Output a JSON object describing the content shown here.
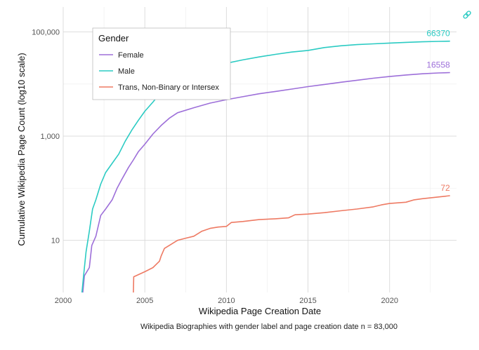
{
  "chart_data": {
    "type": "line",
    "title": "",
    "xlabel": "Wikipedia Page Creation Date",
    "ylabel": "Cumulative Wikipedia Page Count (log10 scale)",
    "caption": "Wikipedia Biographies with gender label and page creation date n = 83,000",
    "x_ticks": [
      "2000",
      "2005",
      "2010",
      "2015",
      "2020"
    ],
    "y_ticks": [
      "10",
      "1,000",
      "100,000"
    ],
    "y_scale": "log10",
    "xlim": [
      2000,
      2024.1
    ],
    "ylim": [
      1,
      300000
    ],
    "grid": true,
    "legend": {
      "title": "Gender",
      "position": "top-left"
    },
    "series": [
      {
        "name": "Female",
        "color": "#9d6fd9",
        "end_label": "16558",
        "points": [
          [
            2001.2,
            1
          ],
          [
            2001.3,
            2.1
          ],
          [
            2001.6,
            3
          ],
          [
            2001.75,
            8
          ],
          [
            2002.0,
            12
          ],
          [
            2002.3,
            30
          ],
          [
            2002.6,
            40
          ],
          [
            2003.0,
            60
          ],
          [
            2003.3,
            100
          ],
          [
            2003.6,
            150
          ],
          [
            2004.0,
            250
          ],
          [
            2004.3,
            350
          ],
          [
            2004.6,
            500
          ],
          [
            2005.0,
            700
          ],
          [
            2005.5,
            1100
          ],
          [
            2006.0,
            1600
          ],
          [
            2006.5,
            2200
          ],
          [
            2007.0,
            2800
          ],
          [
            2008.0,
            3500
          ],
          [
            2009.0,
            4300
          ],
          [
            2010.0,
            5000
          ],
          [
            2011.0,
            5700
          ],
          [
            2012.0,
            6500
          ],
          [
            2013.0,
            7200
          ],
          [
            2014.0,
            8000
          ],
          [
            2015.0,
            8900
          ],
          [
            2016.0,
            9800
          ],
          [
            2017.0,
            10800
          ],
          [
            2018.0,
            11800
          ],
          [
            2019.0,
            12900
          ],
          [
            2020.0,
            13900
          ],
          [
            2021.0,
            14900
          ],
          [
            2022.0,
            15700
          ],
          [
            2023.0,
            16300
          ],
          [
            2023.7,
            16558
          ]
        ]
      },
      {
        "name": "Male",
        "color": "#2bcbc3",
        "end_label": "66370",
        "points": [
          [
            2001.15,
            1
          ],
          [
            2001.25,
            2.1
          ],
          [
            2001.4,
            6
          ],
          [
            2001.6,
            15
          ],
          [
            2001.8,
            40
          ],
          [
            2002.0,
            60
          ],
          [
            2002.3,
            120
          ],
          [
            2002.6,
            200
          ],
          [
            2003.0,
            300
          ],
          [
            2003.4,
            450
          ],
          [
            2003.8,
            800
          ],
          [
            2004.2,
            1300
          ],
          [
            2004.6,
            2000
          ],
          [
            2005.0,
            3000
          ],
          [
            2005.5,
            4500
          ],
          [
            2006.0,
            7000
          ],
          [
            2006.5,
            10000
          ],
          [
            2007.0,
            13000
          ],
          [
            2008.0,
            18000
          ],
          [
            2009.0,
            22000
          ],
          [
            2010.0,
            25000
          ],
          [
            2011.0,
            29000
          ],
          [
            2012.0,
            33000
          ],
          [
            2013.0,
            37000
          ],
          [
            2014.0,
            41000
          ],
          [
            2015.0,
            44000
          ],
          [
            2016.0,
            50000
          ],
          [
            2017.0,
            54000
          ],
          [
            2018.0,
            57000
          ],
          [
            2019.0,
            59000
          ],
          [
            2020.0,
            61000
          ],
          [
            2021.0,
            63000
          ],
          [
            2022.0,
            64500
          ],
          [
            2023.0,
            65800
          ],
          [
            2023.7,
            66370
          ]
        ]
      },
      {
        "name": "Trans, Non-Binary or Intersex",
        "color": "#ee7a63",
        "end_label": "72",
        "points": [
          [
            2004.3,
            1
          ],
          [
            2004.32,
            2
          ],
          [
            2005.0,
            2.5
          ],
          [
            2005.5,
            3
          ],
          [
            2005.9,
            4
          ],
          [
            2006.0,
            5
          ],
          [
            2006.2,
            7
          ],
          [
            2006.5,
            8
          ],
          [
            2007.0,
            10
          ],
          [
            2007.5,
            11
          ],
          [
            2008.0,
            12
          ],
          [
            2008.5,
            15
          ],
          [
            2009.0,
            17
          ],
          [
            2009.5,
            18
          ],
          [
            2010.0,
            18.5
          ],
          [
            2010.3,
            22
          ],
          [
            2011.0,
            23
          ],
          [
            2012.0,
            25
          ],
          [
            2013.0,
            26
          ],
          [
            2013.8,
            27
          ],
          [
            2014.2,
            31
          ],
          [
            2015.0,
            32
          ],
          [
            2016.0,
            34
          ],
          [
            2017.0,
            37
          ],
          [
            2018.0,
            40
          ],
          [
            2019.0,
            44
          ],
          [
            2019.5,
            48
          ],
          [
            2020.0,
            51
          ],
          [
            2021.0,
            54
          ],
          [
            2021.5,
            60
          ],
          [
            2022.0,
            63
          ],
          [
            2023.0,
            68
          ],
          [
            2023.7,
            72
          ]
        ]
      }
    ]
  },
  "link_icon": "link-icon"
}
